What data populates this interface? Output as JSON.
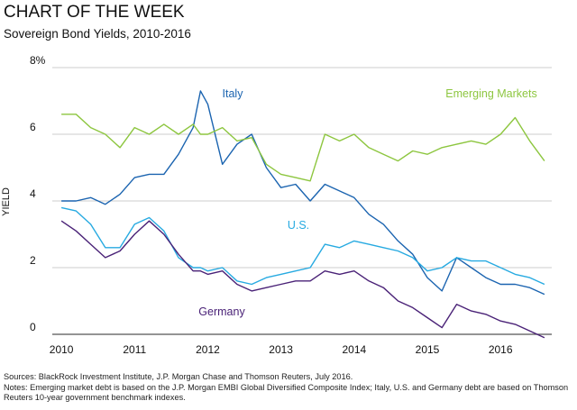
{
  "chart_data": {
    "type": "line",
    "title": "CHART OF THE WEEK",
    "subtitle": "Sovereign Bond Yields, 2010-2016",
    "y_label": "YIELD",
    "sources": "Sources: BlackRock Investment Institute, J.P. Morgan Chase and Thomson Reuters, July 2016.",
    "notes": "Notes: Emerging market debt is based on the J.P. Morgan EMBI Global Diversified Composite Index; Italy, U.S. and Germany debt are based on Thomson Reuters 10-year government benchmark indexes.",
    "x": [
      2010.0,
      2010.2,
      2010.4,
      2010.6,
      2010.8,
      2011.0,
      2011.2,
      2011.4,
      2011.6,
      2011.8,
      2011.9,
      2012.0,
      2012.2,
      2012.4,
      2012.6,
      2012.8,
      2013.0,
      2013.2,
      2013.4,
      2013.6,
      2013.8,
      2014.0,
      2014.2,
      2014.4,
      2014.6,
      2014.8,
      2015.0,
      2015.2,
      2015.4,
      2015.6,
      2015.8,
      2016.0,
      2016.2,
      2016.4,
      2016.6
    ],
    "series": [
      {
        "name": "Italy",
        "color": "#1b64b0",
        "values": [
          4.0,
          4.0,
          4.1,
          3.9,
          4.2,
          4.7,
          4.8,
          4.8,
          5.4,
          6.2,
          7.3,
          6.9,
          5.1,
          5.7,
          6.0,
          5.0,
          4.4,
          4.5,
          4.0,
          4.5,
          4.3,
          4.1,
          3.6,
          3.3,
          2.8,
          2.4,
          1.7,
          1.3,
          2.3,
          2.0,
          1.7,
          1.5,
          1.5,
          1.4,
          1.2
        ]
      },
      {
        "name": "Emerging Markets",
        "color": "#8dc63f",
        "values": [
          6.6,
          6.6,
          6.2,
          6.0,
          5.6,
          6.2,
          6.0,
          6.3,
          6.0,
          6.3,
          6.0,
          6.0,
          6.2,
          5.8,
          5.9,
          5.1,
          4.8,
          4.7,
          4.6,
          6.0,
          5.8,
          6.0,
          5.6,
          5.4,
          5.2,
          5.5,
          5.4,
          5.6,
          5.7,
          5.8,
          5.7,
          6.0,
          6.5,
          5.8,
          5.2
        ]
      },
      {
        "name": "U.S.",
        "color": "#27aae1",
        "values": [
          3.8,
          3.7,
          3.3,
          2.6,
          2.6,
          3.3,
          3.5,
          3.1,
          2.3,
          2.0,
          2.0,
          1.9,
          2.0,
          1.6,
          1.5,
          1.7,
          1.8,
          1.9,
          2.0,
          2.7,
          2.6,
          2.8,
          2.7,
          2.6,
          2.5,
          2.3,
          1.9,
          2.0,
          2.3,
          2.2,
          2.2,
          2.0,
          1.8,
          1.7,
          1.5
        ]
      },
      {
        "name": "Germany",
        "color": "#4a2277",
        "values": [
          3.4,
          3.1,
          2.7,
          2.3,
          2.5,
          3.0,
          3.4,
          3.0,
          2.4,
          1.9,
          1.9,
          1.8,
          1.9,
          1.5,
          1.3,
          1.4,
          1.5,
          1.6,
          1.6,
          1.9,
          1.8,
          1.9,
          1.6,
          1.4,
          1.0,
          0.8,
          0.5,
          0.2,
          0.9,
          0.7,
          0.6,
          0.4,
          0.3,
          0.1,
          -0.1
        ]
      }
    ],
    "xlim": [
      2009.9,
      2016.7
    ],
    "xticks": [
      2010,
      2011,
      2012,
      2013,
      2014,
      2015,
      2016
    ],
    "ylim": [
      0,
      8
    ],
    "yticks": [
      0,
      2,
      4,
      6,
      {
        "value": 8,
        "label": "8%"
      }
    ],
    "grid": true
  }
}
